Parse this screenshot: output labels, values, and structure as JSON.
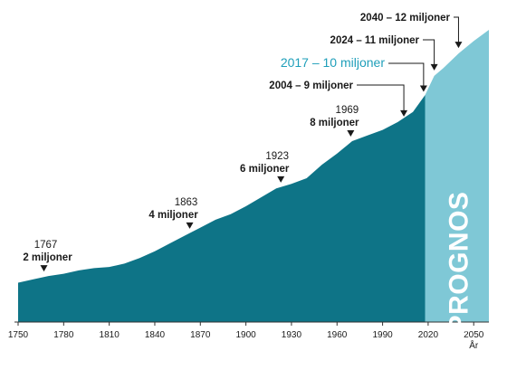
{
  "chart_data": {
    "type": "area",
    "x_unit_label": "År",
    "xlim": [
      1750,
      2060
    ],
    "ylim": [
      0,
      13
    ],
    "xticks": [
      1750,
      1780,
      1810,
      1840,
      1870,
      1900,
      1930,
      1960,
      1990,
      2020,
      2050
    ],
    "forecast_start": 2018,
    "forecast_label": "PROGNOS",
    "colors": {
      "historical": "#0e7487",
      "forecast": "#7fc8d6",
      "highlight": "#1f9fba",
      "text": "#1a1a1a"
    },
    "series": [
      {
        "x": [
          1750,
          1760,
          1770,
          1780,
          1790,
          1800,
          1810,
          1820,
          1830,
          1840,
          1850,
          1860,
          1870,
          1880,
          1890,
          1900,
          1910,
          1920,
          1930,
          1940,
          1950,
          1960,
          1970,
          1980,
          1990,
          2000,
          2010,
          2018
        ],
        "values": [
          1.75,
          1.9,
          2.05,
          2.15,
          2.3,
          2.4,
          2.45,
          2.6,
          2.85,
          3.15,
          3.5,
          3.85,
          4.2,
          4.55,
          4.8,
          5.15,
          5.55,
          5.95,
          6.15,
          6.4,
          7.0,
          7.5,
          8.05,
          8.3,
          8.55,
          8.9,
          9.35,
          10.1
        ]
      },
      {
        "x": [
          2018,
          2024,
          2030,
          2040,
          2050,
          2060
        ],
        "values": [
          10.1,
          10.95,
          11.3,
          11.95,
          12.5,
          13.0
        ]
      }
    ],
    "annotations": [
      {
        "year_text": "1767",
        "value_text": "2 miljoner",
        "x": 1767,
        "y": 2.05
      },
      {
        "year_text": "1863",
        "value_text": "4 miljoner",
        "x": 1863,
        "y": 3.95
      },
      {
        "year_text": "1923",
        "value_text": "6 miljoner",
        "x": 1923,
        "y": 6.0
      },
      {
        "year_text": "1969",
        "value_text": "8 miljoner",
        "x": 1969,
        "y": 8.05
      },
      {
        "text": "2004 – 9 miljoner",
        "x": 2004,
        "y": 8.9
      },
      {
        "text": "2017 – 10 miljoner",
        "x": 2017,
        "y": 10.0,
        "highlight": true
      },
      {
        "text": "2024 – 11 miljoner",
        "x": 2024,
        "y": 10.95
      },
      {
        "text": "2040 – 12 miljoner",
        "x": 2040,
        "y": 11.95
      }
    ]
  }
}
